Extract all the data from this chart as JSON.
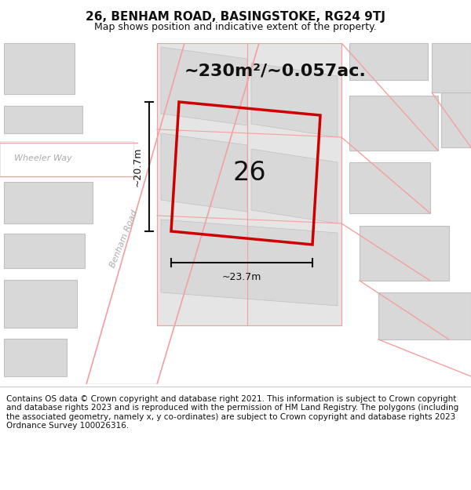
{
  "title": "26, BENHAM ROAD, BASINGSTOKE, RG24 9TJ",
  "subtitle": "Map shows position and indicative extent of the property.",
  "footer": "Contains OS data © Crown copyright and database right 2021. This information is subject to Crown copyright and database rights 2023 and is reproduced with the permission of HM Land Registry. The polygons (including the associated geometry, namely x, y co-ordinates) are subject to Crown copyright and database rights 2023 Ordnance Survey 100026316.",
  "area_label": "~230m²/~0.057ac.",
  "dim_width": "~23.7m",
  "dim_height": "~20.7m",
  "plot_label": "26",
  "title_fontsize": 11,
  "subtitle_fontsize": 9,
  "footer_fontsize": 7.5,
  "plot_outline_color": "#cc0000",
  "dim_color": "#111111",
  "background": "#ffffff",
  "map_bg": "#f0f0f0",
  "bldg_color": "#d8d8d8",
  "bldg_stroke": "#c0c0c0",
  "road_fill": "#ffffff",
  "road_line": "#f5a0a0",
  "street_label_color": "#aaaaaa"
}
